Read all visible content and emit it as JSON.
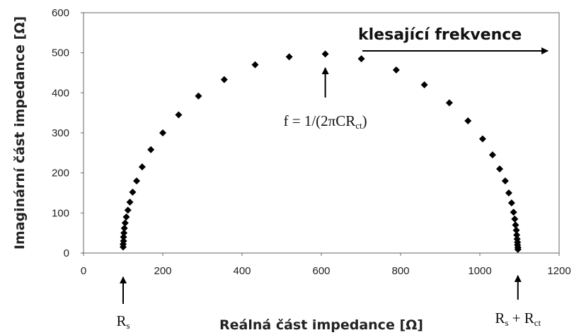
{
  "chart_data": {
    "type": "scatter",
    "title": "",
    "xlabel": "Reálná část impedance [Ω]",
    "ylabel": "Imaginární část impedance  [Ω]",
    "xlim": [
      0,
      1200
    ],
    "ylim": [
      0,
      600
    ],
    "xticks": [
      "0",
      "200",
      "400",
      "600",
      "800",
      "1000",
      "1200"
    ],
    "yticks": [
      "0",
      "100",
      "200",
      "300",
      "400",
      "500",
      "600"
    ],
    "grid": false,
    "marker": "diamond",
    "marker_color": "#000000",
    "points": [
      {
        "x": 100,
        "y": 15
      },
      {
        "x": 100,
        "y": 22
      },
      {
        "x": 101,
        "y": 30
      },
      {
        "x": 101,
        "y": 40
      },
      {
        "x": 102,
        "y": 50
      },
      {
        "x": 103,
        "y": 62
      },
      {
        "x": 105,
        "y": 75
      },
      {
        "x": 108,
        "y": 90
      },
      {
        "x": 112,
        "y": 107
      },
      {
        "x": 117,
        "y": 127
      },
      {
        "x": 124,
        "y": 152
      },
      {
        "x": 134,
        "y": 180
      },
      {
        "x": 148,
        "y": 215
      },
      {
        "x": 170,
        "y": 258
      },
      {
        "x": 200,
        "y": 300
      },
      {
        "x": 240,
        "y": 345
      },
      {
        "x": 290,
        "y": 392
      },
      {
        "x": 355,
        "y": 433
      },
      {
        "x": 433,
        "y": 470
      },
      {
        "x": 519,
        "y": 490
      },
      {
        "x": 610,
        "y": 497
      },
      {
        "x": 701,
        "y": 485
      },
      {
        "x": 789,
        "y": 457
      },
      {
        "x": 860,
        "y": 420
      },
      {
        "x": 923,
        "y": 375
      },
      {
        "x": 970,
        "y": 330
      },
      {
        "x": 1007,
        "y": 285
      },
      {
        "x": 1032,
        "y": 245
      },
      {
        "x": 1050,
        "y": 210
      },
      {
        "x": 1064,
        "y": 180
      },
      {
        "x": 1073,
        "y": 150
      },
      {
        "x": 1080,
        "y": 125
      },
      {
        "x": 1085,
        "y": 102
      },
      {
        "x": 1088,
        "y": 85
      },
      {
        "x": 1090,
        "y": 70
      },
      {
        "x": 1092,
        "y": 57
      },
      {
        "x": 1093,
        "y": 45
      },
      {
        "x": 1094,
        "y": 35
      },
      {
        "x": 1095,
        "y": 27
      },
      {
        "x": 1095,
        "y": 20
      },
      {
        "x": 1096,
        "y": 14
      },
      {
        "x": 1096,
        "y": 9
      }
    ],
    "annotations": {
      "direction": "klesající frekvence",
      "peak_formula": "f = 1/(2πCRct)",
      "peak_formula_parts": {
        "main": "f = 1/(2πCR",
        "sub": "ct",
        "close": ")"
      },
      "rs": {
        "main": "R",
        "sub": "s",
        "x": 100
      },
      "rs_rct": {
        "r1": "R",
        "s1": "s",
        "plus": " + R",
        "s2": "ct",
        "x": 1096
      },
      "peak_x": 610
    }
  }
}
